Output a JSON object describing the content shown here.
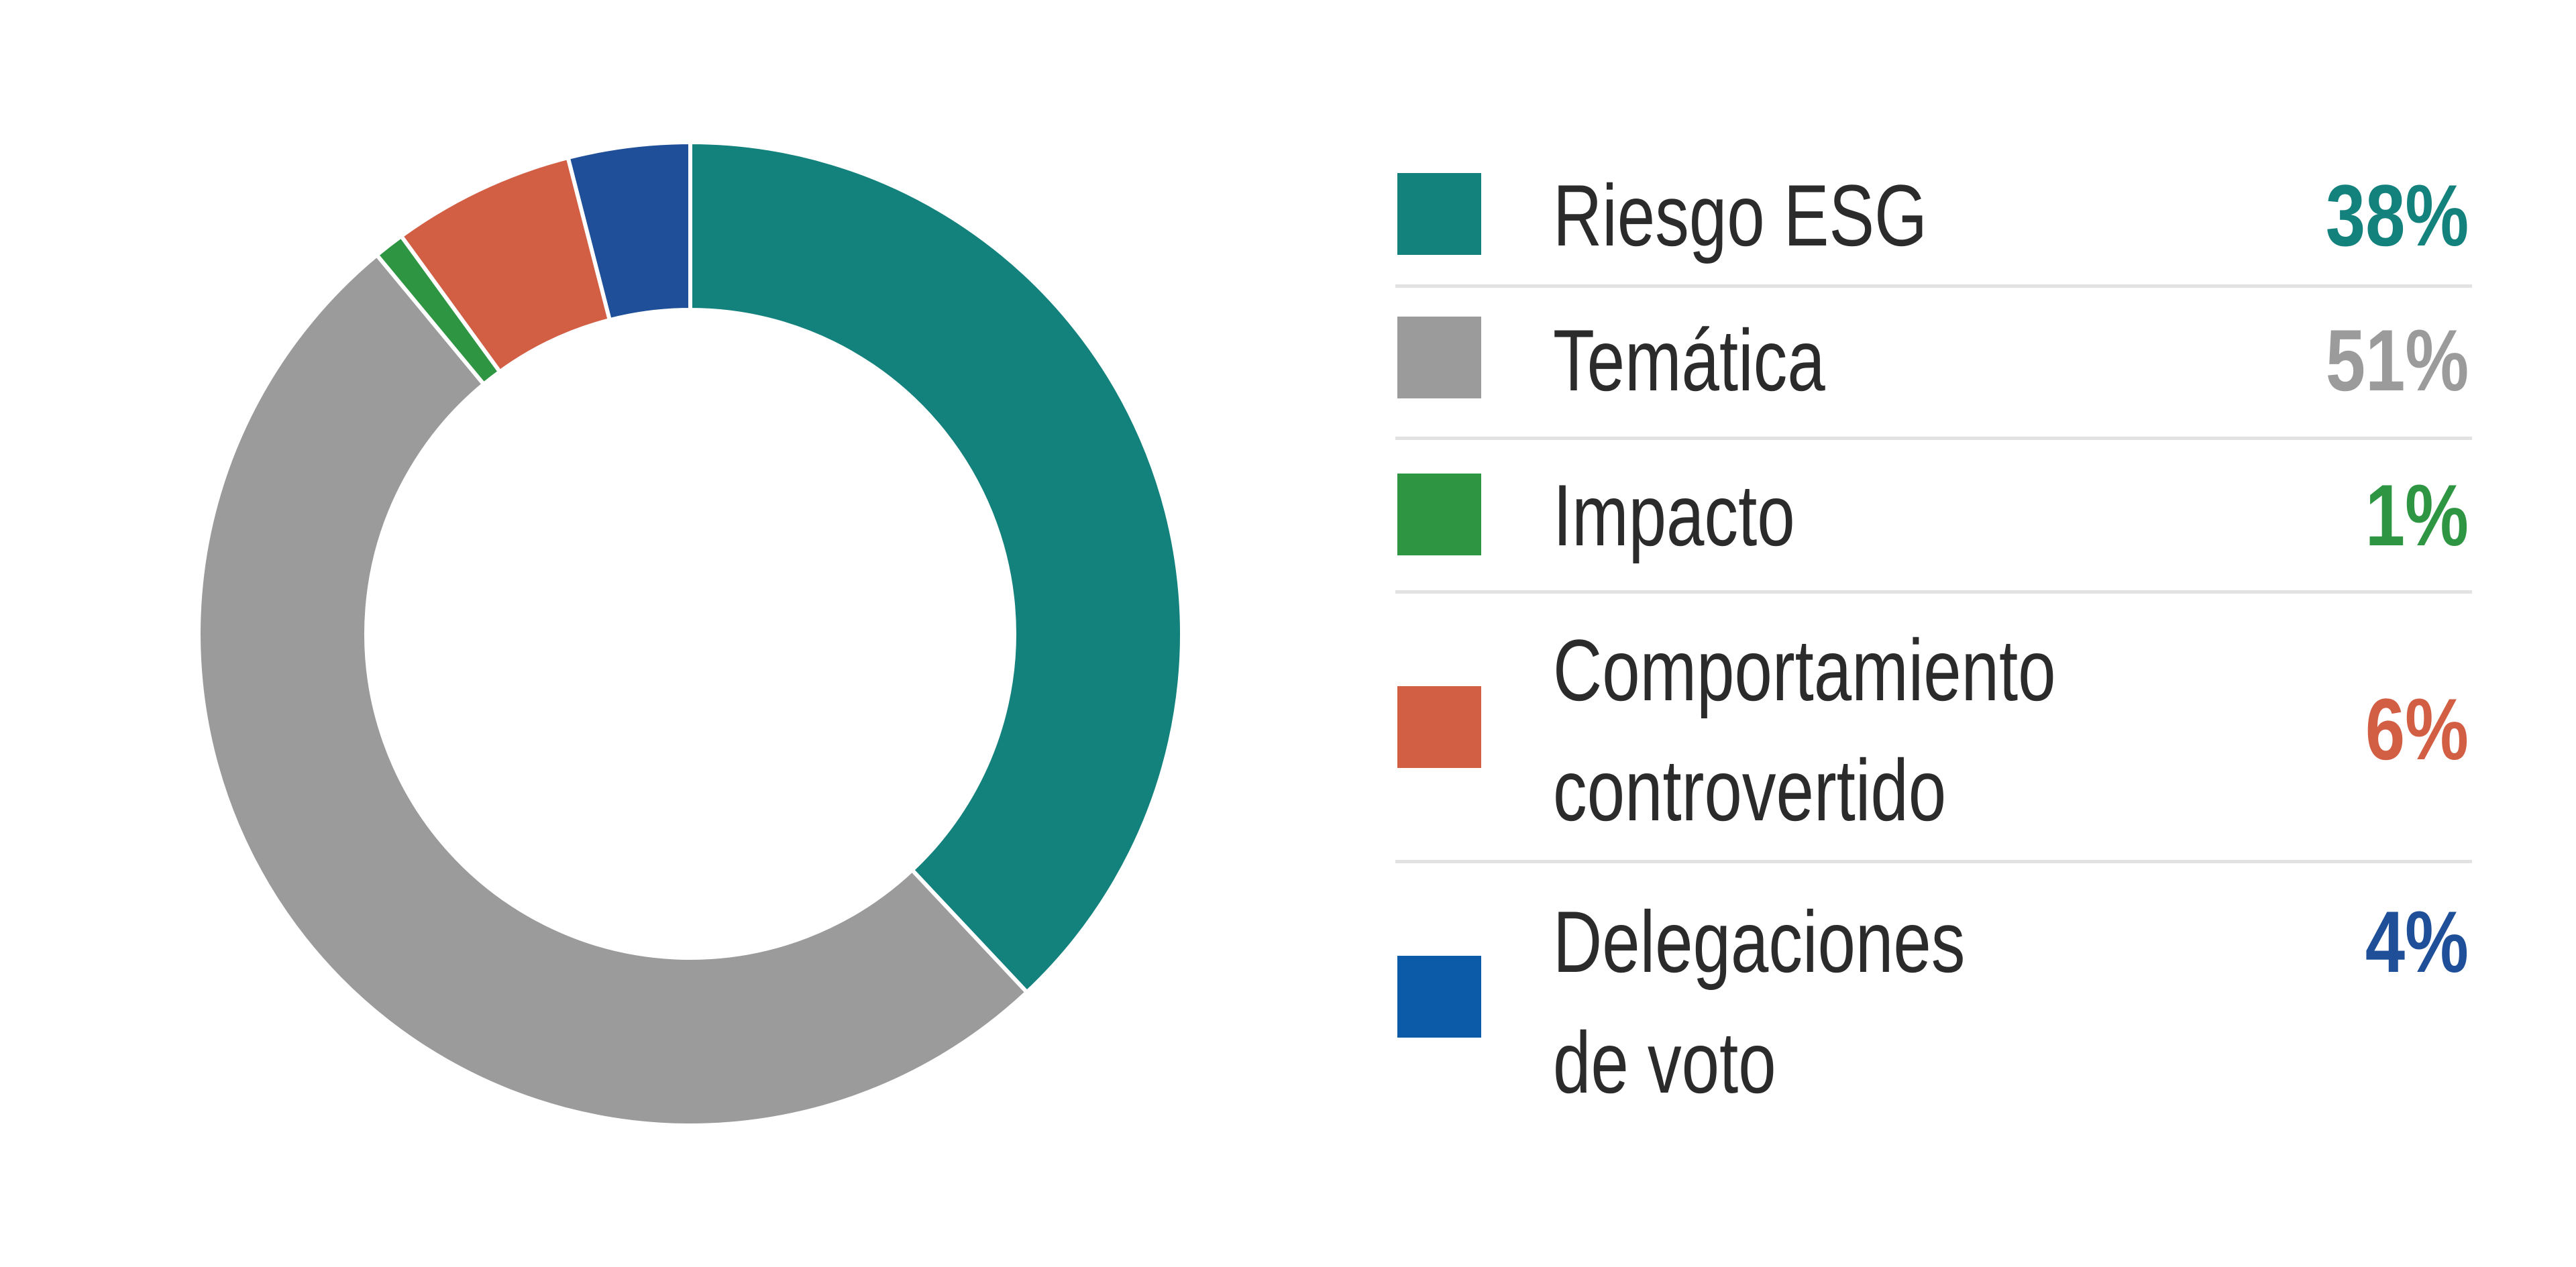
{
  "chart_data": {
    "type": "pie",
    "donut": true,
    "slices": [
      {
        "label": "Riesgo ESG",
        "value": 38,
        "display": "38%",
        "color": "#13817c"
      },
      {
        "label": "Temática",
        "value": 51,
        "display": "51%",
        "color": "#9b9b9b"
      },
      {
        "label": "Impacto",
        "value": 1,
        "display": "1%",
        "color": "#2e9642"
      },
      {
        "label_lines": [
          "Comportamiento",
          "controvertido"
        ],
        "label": "Comportamiento controvertido",
        "value": 6,
        "display": "6%",
        "color": "#d25e44"
      },
      {
        "label_lines": [
          "Delegaciones",
          "de voto"
        ],
        "label": "Delegaciones de voto",
        "value": 4,
        "display": "4%",
        "color": "#1f4f99"
      }
    ],
    "value_colors": [
      "#13817c",
      "#9b9b9b",
      "#2e9642",
      "#d25e44",
      "#1f4f99"
    ],
    "swatch_colors": [
      "#13817c",
      "#9b9b9b",
      "#2e9642",
      "#d25e44",
      "#0b5ba8"
    ],
    "legend_placement": "right"
  }
}
